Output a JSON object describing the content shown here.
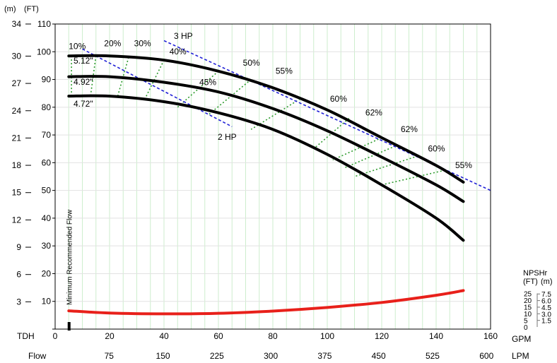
{
  "chart_data": {
    "type": "line",
    "axes": {
      "left_unit_m": "(m)",
      "left_unit_ft": "(FT)",
      "y_ft_ticks": [
        "0",
        "10",
        "20",
        "30",
        "40",
        "50",
        "60",
        "70",
        "80",
        "90",
        "100",
        "110"
      ],
      "y_m_ticks": [
        "3",
        "6",
        "9",
        "12",
        "15",
        "18",
        "21",
        "24",
        "27",
        "30",
        "34"
      ],
      "x_gpm_ticks": [
        "0",
        "20",
        "40",
        "60",
        "80",
        "100",
        "120",
        "140",
        "160"
      ],
      "x_lpm_ticks": [
        "75",
        "150",
        "225",
        "300",
        "375",
        "450",
        "525",
        "600"
      ],
      "tdh_label": "TDH",
      "flow_label": "Flow",
      "gpm_label": "GPM",
      "lpm_label": "LPM",
      "xlim": [
        0,
        160
      ],
      "ylim_ft": [
        0,
        110
      ]
    },
    "grid": true,
    "impeller_curves": [
      {
        "name": "5.12\"",
        "x": [
          5,
          20,
          40,
          60,
          80,
          100,
          120,
          140,
          150
        ],
        "y": [
          98.5,
          98.5,
          97,
          93,
          87,
          79,
          69,
          59,
          53
        ]
      },
      {
        "name": "4.92\"",
        "x": [
          5,
          20,
          40,
          60,
          80,
          100,
          120,
          140,
          150
        ],
        "y": [
          91,
          91,
          89,
          85.5,
          79.5,
          71.5,
          62,
          52,
          46
        ]
      },
      {
        "name": "4.72\"",
        "x": [
          5,
          20,
          40,
          60,
          80,
          100,
          120,
          140,
          150
        ],
        "y": [
          84,
          84,
          82,
          78,
          72,
          63,
          52,
          40,
          32
        ]
      }
    ],
    "hp_lines": [
      {
        "name": "3 HP",
        "x": [
          40,
          160
        ],
        "y": [
          104,
          50
        ]
      },
      {
        "name": "2 HP",
        "x": [
          10,
          65
        ],
        "y": [
          101,
          73
        ]
      }
    ],
    "efficiency_labels": [
      {
        "text": "10%",
        "x": 5,
        "y": 101
      },
      {
        "text": "20%",
        "x": 18,
        "y": 102
      },
      {
        "text": "30%",
        "x": 29,
        "y": 102
      },
      {
        "text": "40%",
        "x": 42,
        "y": 99
      },
      {
        "text": "45%",
        "x": 53,
        "y": 88
      },
      {
        "text": "50%",
        "x": 69,
        "y": 95
      },
      {
        "text": "55%",
        "x": 81,
        "y": 92
      },
      {
        "text": "60%",
        "x": 101,
        "y": 82
      },
      {
        "text": "62%",
        "x": 114,
        "y": 77
      },
      {
        "text": "62%",
        "x": 127,
        "y": 71
      },
      {
        "text": "60%",
        "x": 137,
        "y": 64
      },
      {
        "text": "55%",
        "x": 147,
        "y": 58
      }
    ],
    "efficiency_lines": [
      {
        "x": [
          6,
          6
        ],
        "y": [
          98.5,
          84
        ]
      },
      {
        "x": [
          15,
          13
        ],
        "y": [
          98.5,
          84
        ]
      },
      {
        "x": [
          27,
          23
        ],
        "y": [
          98,
          84
        ]
      },
      {
        "x": [
          40,
          33
        ],
        "y": [
          97,
          83
        ]
      },
      {
        "x": [
          60,
          45
        ],
        "y": [
          93,
          80
        ]
      },
      {
        "x": [
          72,
          56
        ],
        "y": [
          90,
          77
        ]
      },
      {
        "x": [
          90,
          72
        ],
        "y": [
          83,
          72
        ]
      },
      {
        "x": [
          108,
          95
        ],
        "y": [
          76,
          65
        ]
      },
      {
        "x": [
          120,
          102
        ],
        "y": [
          69,
          61
        ]
      },
      {
        "x": [
          125,
          106
        ],
        "y": [
          66,
          58
        ]
      },
      {
        "x": [
          132,
          110
        ],
        "y": [
          62,
          55
        ]
      },
      {
        "x": [
          142,
          120
        ],
        "y": [
          57,
          52
        ]
      }
    ],
    "npshr": {
      "title": "NPSHr",
      "unit_ft": "(FT)",
      "unit_m": "(m)",
      "ft_ticks": [
        "25",
        "20",
        "15",
        "10",
        "5",
        "0"
      ],
      "m_ticks": [
        "7.5",
        "6.0",
        "4.5",
        "3.0",
        "1.5"
      ],
      "ft_max": 25,
      "x": [
        5,
        20,
        40,
        60,
        80,
        100,
        120,
        140,
        150
      ],
      "y": [
        6.6,
        5.8,
        5.5,
        5.7,
        6.5,
        7.8,
        9.6,
        12.2,
        13.9
      ]
    },
    "min_flow": {
      "text": "Minimum Recommended Flow",
      "x": 5
    }
  },
  "colors": {
    "impeller": "#000000",
    "hp": "#1f1fd6",
    "efficiency": "#2e9b2e",
    "npshr": "#e8201a",
    "grid": "#cdeecd"
  }
}
